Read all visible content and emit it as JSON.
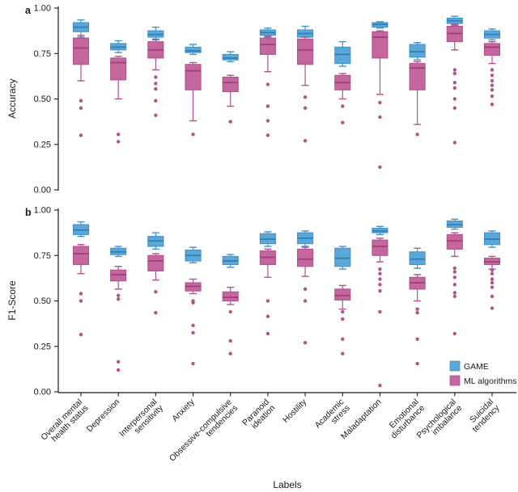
{
  "figure": {
    "panel_a_letter": "a",
    "panel_b_letter": "b",
    "x_axis_title": "Labels"
  },
  "legend": {
    "items": [
      {
        "label": "GAME",
        "color": "#5ba7d9",
        "edge": "#4493c8"
      },
      {
        "label": "ML algorithms",
        "color": "#c4679f",
        "edge": "#b3528c"
      }
    ]
  },
  "chart_data": [
    {
      "type": "boxplot",
      "panel": "a",
      "ylabel": "Accuracy",
      "ylim": [
        0,
        1
      ],
      "yticks": [
        0.0,
        0.25,
        0.5,
        0.75,
        1.0
      ],
      "ytick_labels": [
        "0.00",
        "0.25",
        "0.50",
        "0.75",
        "1.00"
      ],
      "categories": [
        "Overall mental\nhealth status",
        "Depression",
        "Interpersonal\nsensitivity",
        "Anxiety",
        "Obsessive-compulsive\ntendencies",
        "Paranoid\nideation",
        "Hostility",
        "Academic\nstress",
        "Maladaptation",
        "Emotional\ndisturbance",
        "Psychological\nimbalance",
        "Suicidal\ntendency"
      ],
      "series": [
        {
          "name": "GAME",
          "fill": "#5ba7d9",
          "edge": "#4493c8",
          "median_color": "#2f7fb4",
          "boxes": [
            {
              "whislo": 0.84,
              "q1": 0.87,
              "med": 0.895,
              "q3": 0.92,
              "whishi": 0.935,
              "fliers": []
            },
            {
              "whislo": 0.755,
              "q1": 0.77,
              "med": 0.785,
              "q3": 0.805,
              "whishi": 0.82,
              "fliers": []
            },
            {
              "whislo": 0.83,
              "q1": 0.84,
              "med": 0.855,
              "q3": 0.875,
              "whishi": 0.895,
              "fliers": []
            },
            {
              "whislo": 0.745,
              "q1": 0.755,
              "med": 0.765,
              "q3": 0.785,
              "whishi": 0.8,
              "fliers": []
            },
            {
              "whislo": 0.705,
              "q1": 0.715,
              "med": 0.725,
              "q3": 0.745,
              "whishi": 0.76,
              "fliers": []
            },
            {
              "whislo": 0.84,
              "q1": 0.85,
              "med": 0.865,
              "q3": 0.88,
              "whishi": 0.89,
              "fliers": []
            },
            {
              "whislo": 0.825,
              "q1": 0.84,
              "med": 0.86,
              "q3": 0.88,
              "whishi": 0.9,
              "fliers": []
            },
            {
              "whislo": 0.68,
              "q1": 0.695,
              "med": 0.745,
              "q3": 0.785,
              "whishi": 0.815,
              "fliers": []
            },
            {
              "whislo": 0.89,
              "q1": 0.895,
              "med": 0.91,
              "q3": 0.92,
              "whishi": 0.925,
              "fliers": []
            },
            {
              "whislo": 0.715,
              "q1": 0.73,
              "med": 0.76,
              "q3": 0.8,
              "whishi": 0.81,
              "fliers": []
            },
            {
              "whislo": 0.905,
              "q1": 0.915,
              "med": 0.93,
              "q3": 0.945,
              "whishi": 0.955,
              "fliers": []
            },
            {
              "whislo": 0.825,
              "q1": 0.835,
              "med": 0.855,
              "q3": 0.875,
              "whishi": 0.885,
              "fliers": []
            }
          ]
        },
        {
          "name": "ML algorithms",
          "fill": "#c4679f",
          "edge": "#b3528c",
          "median_color": "#a03c78",
          "boxes": [
            {
              "whislo": 0.6,
              "q1": 0.69,
              "med": 0.78,
              "q3": 0.835,
              "whishi": 0.85,
              "fliers": [
                0.49,
                0.45,
                0.3
              ]
            },
            {
              "whislo": 0.5,
              "q1": 0.605,
              "med": 0.7,
              "q3": 0.725,
              "whishi": 0.735,
              "fliers": [
                0.305,
                0.265
              ]
            },
            {
              "whislo": 0.66,
              "q1": 0.725,
              "med": 0.77,
              "q3": 0.815,
              "whishi": 0.825,
              "fliers": [
                0.62,
                0.585,
                0.555,
                0.49,
                0.41
              ]
            },
            {
              "whislo": 0.38,
              "q1": 0.55,
              "med": 0.655,
              "q3": 0.69,
              "whishi": 0.7,
              "fliers": [
                0.305
              ]
            },
            {
              "whislo": 0.46,
              "q1": 0.54,
              "med": 0.59,
              "q3": 0.62,
              "whishi": 0.63,
              "fliers": [
                0.375
              ]
            },
            {
              "whislo": 0.65,
              "q1": 0.745,
              "med": 0.8,
              "q3": 0.835,
              "whishi": 0.845,
              "fliers": [
                0.58,
                0.46,
                0.38,
                0.3
              ]
            },
            {
              "whislo": 0.575,
              "q1": 0.69,
              "med": 0.77,
              "q3": 0.83,
              "whishi": 0.84,
              "fliers": [
                0.51,
                0.45,
                0.27
              ]
            },
            {
              "whislo": 0.5,
              "q1": 0.55,
              "med": 0.59,
              "q3": 0.63,
              "whishi": 0.64,
              "fliers": [
                0.46,
                0.37
              ]
            },
            {
              "whislo": 0.525,
              "q1": 0.725,
              "med": 0.84,
              "q3": 0.87,
              "whishi": 0.875,
              "fliers": [
                0.48,
                0.4,
                0.125
              ]
            },
            {
              "whislo": 0.36,
              "q1": 0.55,
              "med": 0.67,
              "q3": 0.695,
              "whishi": 0.705,
              "fliers": [
                0.305
              ]
            },
            {
              "whislo": 0.77,
              "q1": 0.815,
              "med": 0.86,
              "q3": 0.9,
              "whishi": 0.91,
              "fliers": [
                0.66,
                0.64,
                0.59,
                0.56,
                0.5,
                0.45,
                0.26
              ]
            },
            {
              "whislo": 0.695,
              "q1": 0.74,
              "med": 0.785,
              "q3": 0.805,
              "whishi": 0.815,
              "fliers": [
                0.66,
                0.63,
                0.6,
                0.575,
                0.55,
                0.515,
                0.47
              ]
            }
          ]
        }
      ]
    },
    {
      "type": "boxplot",
      "panel": "b",
      "ylabel": "F1-Score",
      "ylim": [
        0,
        1
      ],
      "yticks": [
        0.0,
        0.25,
        0.5,
        0.75,
        1.0
      ],
      "ytick_labels": [
        "0.00",
        "0.25",
        "0.50",
        "0.75",
        "1.00"
      ],
      "categories": [
        "Overall mental\nhealth status",
        "Depression",
        "Interpersonal\nsensitivity",
        "Anxiety",
        "Obsessive-compulsive\ntendencies",
        "Paranoid\nideation",
        "Hostility",
        "Academic\nstress",
        "Maladaptation",
        "Emotional\ndisturbance",
        "Psychological\nimbalance",
        "Suicidal\ntendency"
      ],
      "series": [
        {
          "name": "GAME",
          "fill": "#5ba7d9",
          "edge": "#4493c8",
          "median_color": "#2f7fb4",
          "boxes": [
            {
              "whislo": 0.855,
              "q1": 0.865,
              "med": 0.89,
              "q3": 0.92,
              "whishi": 0.935,
              "fliers": []
            },
            {
              "whislo": 0.745,
              "q1": 0.755,
              "med": 0.77,
              "q3": 0.79,
              "whishi": 0.8,
              "fliers": []
            },
            {
              "whislo": 0.785,
              "q1": 0.8,
              "med": 0.83,
              "q3": 0.855,
              "whishi": 0.875,
              "fliers": []
            },
            {
              "whislo": 0.71,
              "q1": 0.72,
              "med": 0.75,
              "q3": 0.78,
              "whishi": 0.795,
              "fliers": []
            },
            {
              "whislo": 0.685,
              "q1": 0.7,
              "med": 0.72,
              "q3": 0.745,
              "whishi": 0.755,
              "fliers": []
            },
            {
              "whislo": 0.8,
              "q1": 0.815,
              "med": 0.84,
              "q3": 0.87,
              "whishi": 0.88,
              "fliers": []
            },
            {
              "whislo": 0.8,
              "q1": 0.815,
              "med": 0.845,
              "q3": 0.875,
              "whishi": 0.885,
              "fliers": []
            },
            {
              "whislo": 0.675,
              "q1": 0.69,
              "med": 0.735,
              "q3": 0.79,
              "whishi": 0.8,
              "fliers": []
            },
            {
              "whislo": 0.865,
              "q1": 0.875,
              "med": 0.885,
              "q3": 0.9,
              "whishi": 0.91,
              "fliers": []
            },
            {
              "whislo": 0.68,
              "q1": 0.7,
              "med": 0.73,
              "q3": 0.77,
              "whishi": 0.79,
              "fliers": []
            },
            {
              "whislo": 0.895,
              "q1": 0.905,
              "med": 0.92,
              "q3": 0.94,
              "whishi": 0.95,
              "fliers": []
            },
            {
              "whislo": 0.795,
              "q1": 0.81,
              "med": 0.84,
              "q3": 0.875,
              "whishi": 0.885,
              "fliers": []
            }
          ]
        },
        {
          "name": "ML algorithms",
          "fill": "#c4679f",
          "edge": "#b3528c",
          "median_color": "#a03c78",
          "boxes": [
            {
              "whislo": 0.65,
              "q1": 0.7,
              "med": 0.76,
              "q3": 0.8,
              "whishi": 0.81,
              "fliers": [
                0.54,
                0.5,
                0.315
              ]
            },
            {
              "whislo": 0.565,
              "q1": 0.61,
              "med": 0.645,
              "q3": 0.67,
              "whishi": 0.69,
              "fliers": [
                0.53,
                0.51,
                0.165,
                0.12
              ]
            },
            {
              "whislo": 0.615,
              "q1": 0.665,
              "med": 0.72,
              "q3": 0.75,
              "whishi": 0.76,
              "fliers": [
                0.55,
                0.435
              ]
            },
            {
              "whislo": 0.54,
              "q1": 0.555,
              "med": 0.58,
              "q3": 0.6,
              "whishi": 0.62,
              "fliers": [
                0.5,
                0.49,
                0.365,
                0.325,
                0.155
              ]
            },
            {
              "whislo": 0.48,
              "q1": 0.5,
              "med": 0.52,
              "q3": 0.55,
              "whishi": 0.575,
              "fliers": [
                0.44,
                0.28,
                0.21
              ]
            },
            {
              "whislo": 0.63,
              "q1": 0.7,
              "med": 0.74,
              "q3": 0.775,
              "whishi": 0.785,
              "fliers": [
                0.5,
                0.415,
                0.32
              ]
            },
            {
              "whislo": 0.635,
              "q1": 0.69,
              "med": 0.73,
              "q3": 0.785,
              "whishi": 0.795,
              "fliers": [
                0.565,
                0.5,
                0.27
              ]
            },
            {
              "whislo": 0.455,
              "q1": 0.505,
              "med": 0.53,
              "q3": 0.565,
              "whishi": 0.585,
              "fliers": [
                0.44,
                0.4,
                0.29,
                0.21
              ]
            },
            {
              "whislo": 0.715,
              "q1": 0.75,
              "med": 0.8,
              "q3": 0.835,
              "whishi": 0.845,
              "fliers": [
                0.675,
                0.65,
                0.62,
                0.59,
                0.555,
                0.44,
                0.035
              ]
            },
            {
              "whislo": 0.5,
              "q1": 0.565,
              "med": 0.6,
              "q3": 0.63,
              "whishi": 0.645,
              "fliers": [
                0.455,
                0.435,
                0.29,
                0.155
              ]
            },
            {
              "whislo": 0.745,
              "q1": 0.785,
              "med": 0.83,
              "q3": 0.865,
              "whishi": 0.875,
              "fliers": [
                0.68,
                0.66,
                0.63,
                0.59,
                0.545,
                0.525,
                0.32
              ]
            },
            {
              "whislo": 0.675,
              "q1": 0.7,
              "med": 0.715,
              "q3": 0.735,
              "whishi": 0.745,
              "fliers": [
                0.67,
                0.65,
                0.62,
                0.6,
                0.575,
                0.525,
                0.46
              ]
            }
          ]
        }
      ]
    }
  ]
}
